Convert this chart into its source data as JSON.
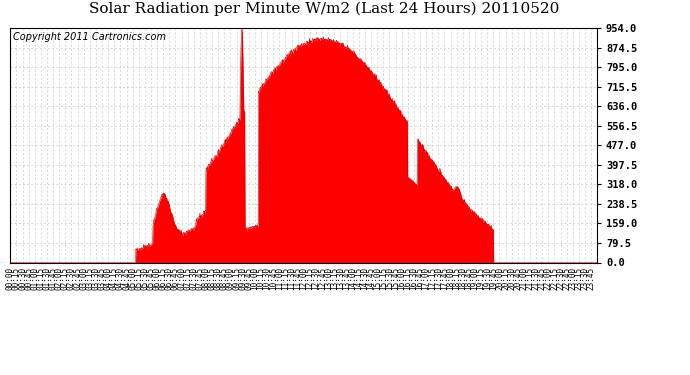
{
  "title": "Solar Radiation per Minute W/m2 (Last 24 Hours) 20110520",
  "copyright": "Copyright 2011 Cartronics.com",
  "yticks": [
    0.0,
    79.5,
    159.0,
    238.5,
    318.0,
    397.5,
    477.0,
    556.5,
    636.0,
    715.5,
    795.0,
    874.5,
    954.0
  ],
  "ymax": 954.0,
  "ymin": 0.0,
  "fill_color": "#FF0000",
  "line_color": "#CC0000",
  "dashed_line_color": "#FF0000",
  "grid_color": "#C8C8C8",
  "background_color": "#FFFFFF",
  "title_fontsize": 11,
  "copyright_fontsize": 7,
  "xtick_fontsize": 5.5,
  "ytick_fontsize": 7.5
}
